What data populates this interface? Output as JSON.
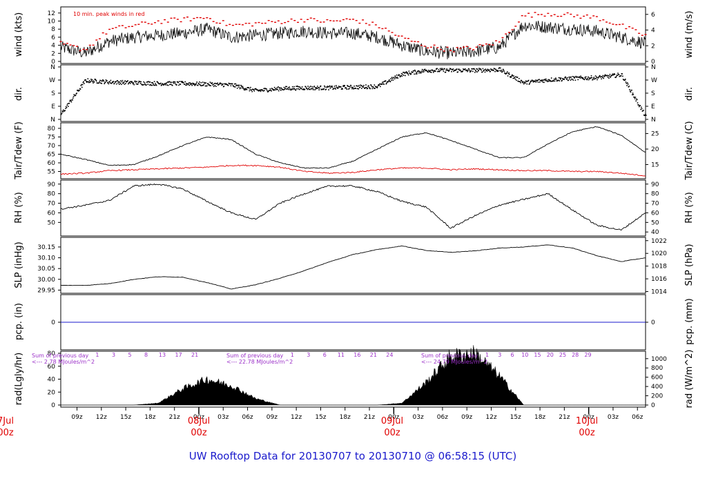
{
  "title_text": "UW Rooftop Data for 20130707  to  20130710 @ 06:58:15  (UTC)",
  "colors": {
    "frame": "#000000",
    "trace": "#000000",
    "peak": "#e00000",
    "dewpoint": "#e00000",
    "precip": "#1a1acc",
    "title": "#1a1acc",
    "solar_note": "#9b30c8"
  },
  "panels": {
    "wind": {
      "left_label": "wind (kts)",
      "right_label": "wind (m/s)",
      "note": "10 min. peak winds in red",
      "left_ticks": [
        "0",
        "2",
        "4",
        "6",
        "8",
        "10",
        "12"
      ],
      "right_ticks": [
        "0",
        "2",
        "4",
        "6"
      ]
    },
    "dir": {
      "left_label": "dir.",
      "right_label": "dir.",
      "ticks": [
        "N",
        "W",
        "S",
        "E",
        "N"
      ]
    },
    "temp": {
      "left_label": "Tair/Tdew (F)",
      "right_label": "Tair/Tdew (C)",
      "left_ticks": [
        "55",
        "60",
        "65",
        "70",
        "75",
        "80"
      ],
      "right_ticks": [
        "15",
        "20",
        "25"
      ]
    },
    "rh": {
      "left_label": "RH (%)",
      "right_label": "RH (%)",
      "left_ticks": [
        "50",
        "60",
        "70",
        "80",
        "90"
      ],
      "right_ticks": [
        "40",
        "50",
        "60",
        "70",
        "80",
        "90"
      ]
    },
    "slp": {
      "left_label": "SLP (inHg)",
      "right_label": "SLP (hPa)",
      "left_ticks": [
        "29.95",
        "30.00",
        "30.05",
        "30.10",
        "30.15"
      ],
      "right_ticks": [
        "1014",
        "1016",
        "1018",
        "1020",
        "1022"
      ]
    },
    "pcp": {
      "left_label": "pcp. (in)",
      "right_label": "pcp. (mm)",
      "left_ticks": [
        "0"
      ],
      "right_ticks": [
        "0"
      ]
    },
    "rad": {
      "left_label": "rad(Lgly/hr)",
      "right_label": "rad (W/m^2)",
      "left_ticks": [
        "0",
        "20",
        "40",
        "60",
        "80"
      ],
      "right_ticks": [
        "0",
        "200",
        "400",
        "600",
        "800",
        "1000"
      ],
      "notes": [
        {
          "line1": "Sum of previous day",
          "line2": "<--- 2.78 MJoules/m^2"
        },
        {
          "line1": "Sum of previous day",
          "line2": "<--- 22.78 MJoules/m^2"
        },
        {
          "line1": "Sum of previous day",
          "line2": "<--- 24.79 MJoules/m^2"
        }
      ],
      "hour_labels": [
        [
          "1",
          "3",
          "5",
          "8",
          "13",
          "17",
          "21"
        ],
        [
          "1",
          "3",
          "6",
          "11",
          "16",
          "21",
          "24"
        ],
        [
          "1",
          "3",
          "6",
          "10",
          "15",
          "20",
          "25",
          "28",
          "29"
        ]
      ]
    }
  },
  "x_axis": {
    "hour_ticks": [
      "09z",
      "12z",
      "15z",
      "18z",
      "21z",
      "00z",
      "03z",
      "06z",
      "09z",
      "12z",
      "15z",
      "18z",
      "21z",
      "00z",
      "03z",
      "06z",
      "09z",
      "12z",
      "15z",
      "18z",
      "21z",
      "00z",
      "03z",
      "06z"
    ],
    "day_labels": [
      {
        "date": "7Jul",
        "time": "00z"
      },
      {
        "date": "08Jul",
        "time": "00z"
      },
      {
        "date": "09Jul",
        "time": "00z"
      },
      {
        "date": "10Jul",
        "time": "00z"
      }
    ]
  },
  "chart_data": {
    "type": "line",
    "title": "UW Rooftop Data for 20130707  to  20130710 @ 06:58:15  (UTC)",
    "time_range_utc": [
      "07Jul 07z",
      "10Jul 07z"
    ],
    "x_hours": [
      0,
      3,
      6,
      9,
      12,
      15,
      18,
      21,
      24,
      27,
      30,
      33,
      36,
      39,
      42,
      45,
      48,
      51,
      54,
      57,
      60,
      63,
      66,
      69,
      72
    ],
    "series": [
      {
        "name": "wind (kts)",
        "ylim": [
          0,
          13
        ],
        "values": [
          3.5,
          2,
          5,
          6,
          6.5,
          7,
          8,
          6,
          6.5,
          7,
          7.5,
          7,
          7,
          6,
          4,
          2.5,
          2,
          2.5,
          3.5,
          9,
          8.5,
          8,
          7.5,
          6,
          4.5
        ]
      },
      {
        "name": "10 min. peak winds",
        "ylim": [
          0,
          13
        ],
        "values": [
          4.5,
          3,
          8,
          9,
          10,
          10.5,
          11,
          9,
          9.5,
          10,
          10.5,
          10,
          10.5,
          9,
          6,
          4,
          3,
          3.5,
          5,
          11.5,
          12,
          11.5,
          11,
          9,
          6.5
        ]
      },
      {
        "name": "dir. (deg)",
        "ylim": [
          0,
          360
        ],
        "values": [
          40,
          270,
          260,
          255,
          250,
          250,
          245,
          240,
          200,
          215,
          220,
          220,
          225,
          230,
          315,
          340,
          340,
          340,
          345,
          255,
          275,
          285,
          290,
          310,
          20
        ]
      },
      {
        "name": "Tair (F)",
        "ylim": [
          52,
          82
        ],
        "values": [
          65,
          62,
          58.5,
          59,
          64,
          70,
          75,
          73.5,
          65,
          60,
          57,
          57,
          61,
          68,
          75,
          77.5,
          73,
          68,
          63,
          63,
          71,
          78,
          81,
          76,
          66
        ]
      },
      {
        "name": "Tdew (F)",
        "ylim": [
          52,
          82
        ],
        "values": [
          53.5,
          54,
          55.5,
          56,
          56.5,
          57,
          57.5,
          58.5,
          58.5,
          57.5,
          55,
          54,
          54.5,
          56,
          57,
          57,
          56,
          56.5,
          56,
          55.5,
          55.5,
          55,
          55,
          54,
          52.5
        ]
      },
      {
        "name": "RH (%)",
        "ylim": [
          38,
          92
        ],
        "values": [
          64,
          68,
          73,
          88,
          90,
          85,
          72,
          60,
          53,
          70,
          80,
          88,
          88,
          82,
          72,
          66,
          44,
          57,
          68,
          74,
          80,
          63,
          47,
          42,
          60
        ]
      },
      {
        "name": "SLP (inHg)",
        "ylim": [
          29.945,
          30.185
        ],
        "values": [
          29.972,
          29.972,
          29.98,
          30.0,
          30.012,
          30.01,
          29.985,
          29.955,
          29.975,
          30.005,
          30.04,
          30.08,
          30.115,
          30.138,
          30.155,
          30.134,
          30.125,
          30.132,
          30.145,
          30.15,
          30.16,
          30.145,
          30.11,
          30.082,
          30.1
        ]
      },
      {
        "name": "pcp. (in)",
        "ylim": [
          -1,
          1
        ],
        "values": [
          0,
          0,
          0,
          0,
          0,
          0,
          0,
          0,
          0,
          0,
          0,
          0,
          0,
          0,
          0,
          0,
          0,
          0,
          0,
          0,
          0,
          0,
          0,
          0,
          0
        ]
      },
      {
        "name": "rad (Lgly/hr)",
        "ylim": [
          0,
          80
        ],
        "values": [
          0,
          0,
          0,
          0,
          3,
          25,
          40,
          30,
          10,
          0,
          0,
          0,
          0,
          0,
          3,
          35,
          75,
          80,
          45,
          0,
          0,
          0,
          0,
          0,
          0
        ]
      }
    ]
  }
}
